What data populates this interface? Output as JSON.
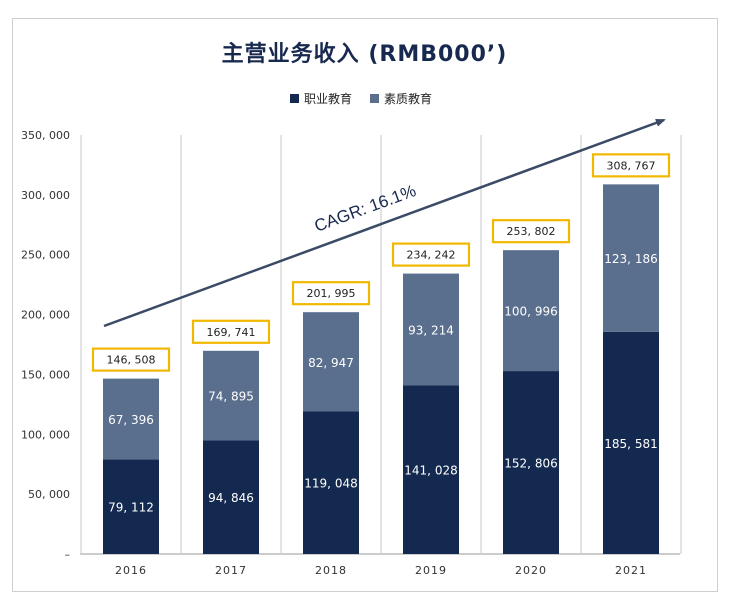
{
  "chart_data": {
    "type": "bar",
    "stacked": true,
    "title": "主营业务收入 (RMB000’)",
    "categories": [
      "2016",
      "2017",
      "2018",
      "2019",
      "2020",
      "2021"
    ],
    "series": [
      {
        "name": "职业教育",
        "color": "#13294f",
        "values": [
          79112,
          94846,
          119048,
          141028,
          152806,
          185581
        ],
        "labels": [
          "79, 112",
          "94, 846",
          "119, 048",
          "141, 028",
          "152, 806",
          "185, 581"
        ]
      },
      {
        "name": "素质教育",
        "color": "#5a6e8d",
        "values": [
          67396,
          74895,
          82947,
          93214,
          100996,
          123186
        ],
        "labels": [
          "67, 396",
          "74, 895",
          "82, 947",
          "93, 214",
          "100, 996",
          "123, 186"
        ]
      }
    ],
    "totals": [
      146508,
      169741,
      201995,
      234242,
      253802,
      308767
    ],
    "total_labels": [
      "146, 508",
      "169, 741",
      "201, 995",
      "234, 242",
      "253, 802",
      "308, 767"
    ],
    "total_box_color": "#f2b800",
    "ylim": [
      0,
      350000
    ],
    "yticks": [
      0,
      50000,
      100000,
      150000,
      200000,
      250000,
      300000,
      350000
    ],
    "ytick_labels": [
      "–",
      "50, 000",
      "100, 000",
      "150, 000",
      "200, 000",
      "250, 000",
      "300, 000",
      "350, 000"
    ],
    "annotation": "CAGR: 16.1%",
    "grid": "vertical separators",
    "legend_position": "top-center"
  }
}
